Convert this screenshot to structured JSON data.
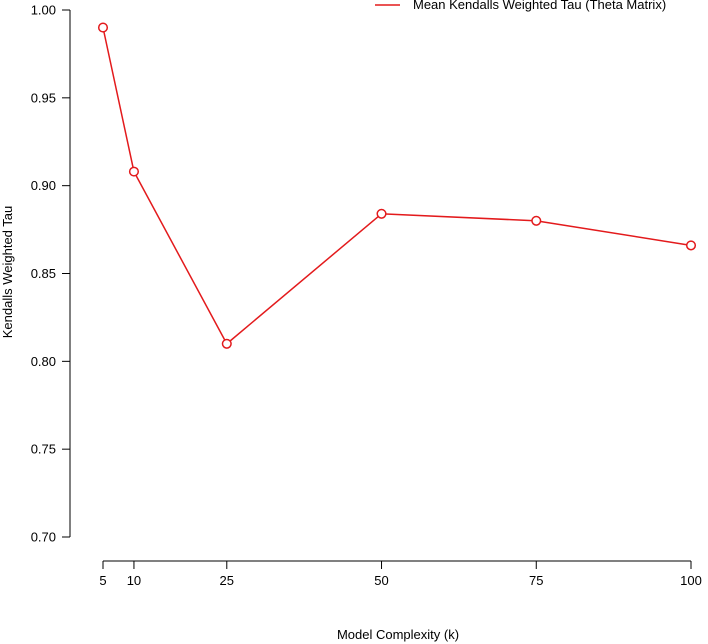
{
  "chart_data": {
    "type": "line",
    "title": "",
    "xlabel": "Model Complexity (k)",
    "ylabel": "Kendalls Weighted Tau",
    "x": [
      5,
      10,
      25,
      50,
      75,
      100
    ],
    "x_ticks": [
      "5",
      "10",
      "25",
      "50",
      "75",
      "100"
    ],
    "xlim": [
      5,
      100
    ],
    "ylim": [
      0.7,
      1.0
    ],
    "y_ticks": [
      "0.70",
      "0.75",
      "0.80",
      "0.85",
      "0.90",
      "0.95",
      "1.00"
    ],
    "grid": false,
    "legend_position": "top-right",
    "series": [
      {
        "name": "Mean Kendalls Weighted Tau (Theta Matrix)",
        "values": [
          0.99,
          0.908,
          0.81,
          0.884,
          0.88,
          0.866
        ],
        "color": "#e31a1c",
        "marker": "open-circle"
      }
    ]
  }
}
